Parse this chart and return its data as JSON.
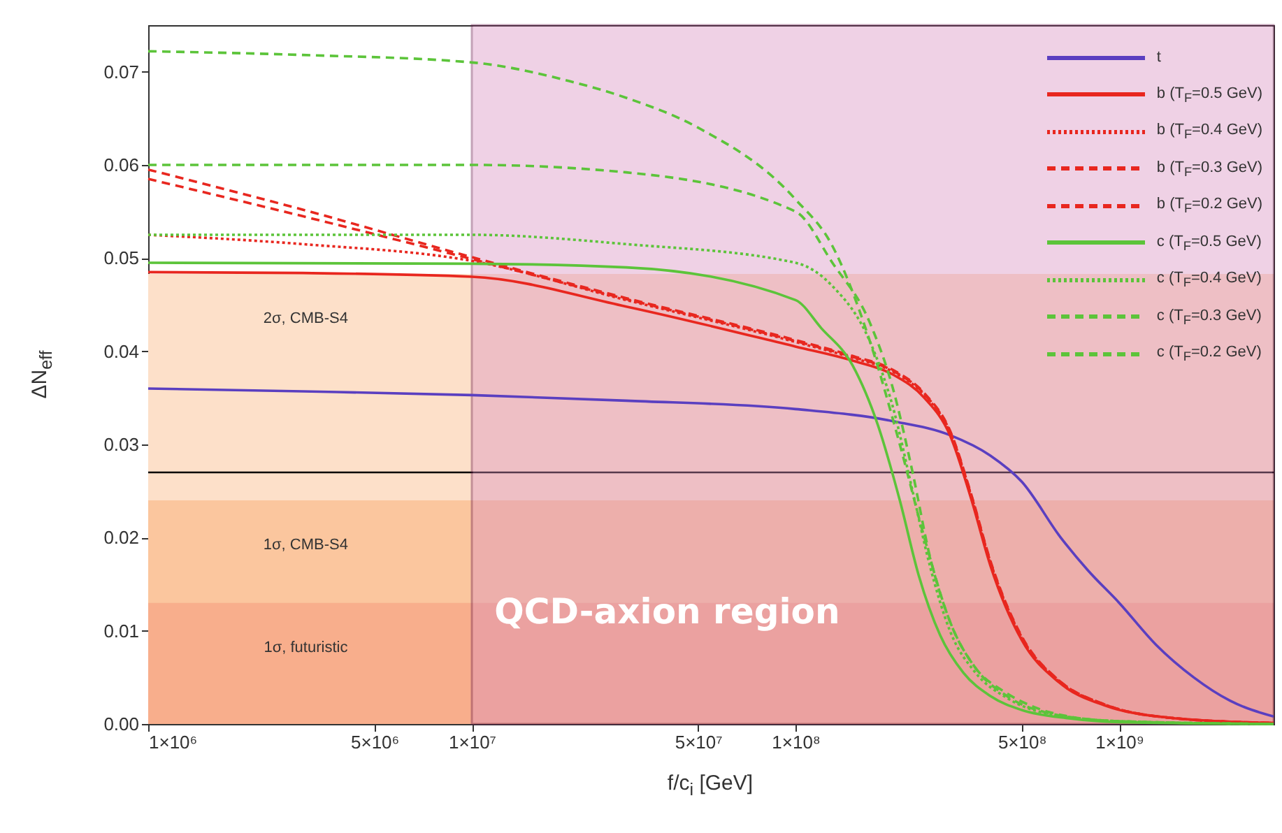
{
  "chart_data": {
    "type": "line",
    "xlabel": "f/c$_{i}$  [GeV]",
    "ylabel": "ΔN$_{eff}$",
    "log": "x",
    "grid": false,
    "legend": "top right",
    "xlim": [
      1000000,
      3000000000
    ],
    "ylim": [
      0,
      0.075
    ],
    "xticks": [
      {
        "value": 1000000,
        "label": "1×10⁶"
      },
      {
        "value": 5000000,
        "label": "5×10⁶"
      },
      {
        "value": 10000000,
        "label": "1×10⁷"
      },
      {
        "value": 50000000,
        "label": "5×10⁷"
      },
      {
        "value": 100000000,
        "label": "1×10⁸"
      },
      {
        "value": 500000000,
        "label": "5×10⁸"
      },
      {
        "value": 1000000000,
        "label": "1×10⁹"
      }
    ],
    "yticks": [
      {
        "value": 0,
        "label": "0.00"
      },
      0.01,
      0.02,
      0.03,
      0.04,
      0.05,
      0.06,
      0.07
    ],
    "bands": [
      {
        "axis": "y",
        "from": 0,
        "to": 0.0483,
        "label": "2σ, CMB-S4",
        "color": "#fde0c9"
      },
      {
        "axis": "y",
        "from": 0,
        "to": 0.024,
        "label": "1σ, CMB-S4",
        "color": "#fbc69e"
      },
      {
        "axis": "y",
        "from": 0,
        "to": 0.013,
        "label": "1σ, futuristic",
        "color": "#f8ae8c"
      },
      {
        "axis": "x",
        "from": 10000000,
        "to": 3000000000,
        "label": "QCD-axion region",
        "color": "#d98fc0"
      }
    ],
    "ref_lines": [
      {
        "axis": "y",
        "value": 0.027,
        "color": "#000000"
      }
    ],
    "series": [
      {
        "name": "t",
        "color": "#5a3fc0",
        "line_style": "solid",
        "x": [
          1000000,
          3000000,
          10000000,
          30000000,
          100000000,
          200000000,
          300000000,
          400000000,
          500000000,
          660000000,
          800000000,
          1000000000,
          1300000000,
          1700000000,
          2200000000,
          3000000000
        ],
        "values": [
          0.036,
          0.0357,
          0.0353,
          0.0347,
          0.0338,
          0.0325,
          0.031,
          0.0288,
          0.026,
          0.02,
          0.0165,
          0.013,
          0.0085,
          0.005,
          0.0025,
          0.0008
        ]
      },
      {
        "name": "b (T$_{F}$=0.5 GeV)",
        "color": "#e8271f",
        "line_style": "solid",
        "x": [
          1000000,
          3000000,
          10000000,
          30000000,
          100000000,
          150000000,
          200000000,
          250000000,
          300000000,
          350000000,
          400000000,
          500000000,
          650000000,
          900000000,
          1500000000,
          3000000000
        ],
        "values": [
          0.0485,
          0.0484,
          0.048,
          0.0448,
          0.0405,
          0.039,
          0.0375,
          0.035,
          0.031,
          0.024,
          0.017,
          0.009,
          0.0045,
          0.002,
          0.0006,
          0.0001
        ]
      },
      {
        "name": "b (T$_{F}$=0.4 GeV)",
        "color": "#e8271f",
        "line_style": "dotted",
        "x": [
          1000000,
          3000000,
          10000000,
          30000000,
          100000000,
          150000000,
          200000000,
          250000000,
          300000000,
          350000000,
          400000000,
          500000000,
          650000000,
          900000000,
          1500000000,
          3000000000
        ],
        "values": [
          0.0525,
          0.0515,
          0.0497,
          0.0455,
          0.041,
          0.0393,
          0.0378,
          0.0353,
          0.0313,
          0.0243,
          0.0173,
          0.0092,
          0.0046,
          0.0021,
          0.0006,
          0.0001
        ]
      },
      {
        "name": "b (T$_{F}$=0.3 GeV)",
        "color": "#e8271f",
        "line_style": "dashed",
        "x": [
          1000000,
          3000000,
          10000000,
          30000000,
          100000000,
          150000000,
          200000000,
          250000000,
          300000000,
          350000000,
          400000000,
          500000000,
          650000000,
          900000000,
          1500000000,
          3000000000
        ],
        "values": [
          0.0585,
          0.0545,
          0.0499,
          0.0456,
          0.0411,
          0.0394,
          0.0379,
          0.0354,
          0.0314,
          0.0244,
          0.0174,
          0.0093,
          0.0047,
          0.0021,
          0.0006,
          0.0001
        ]
      },
      {
        "name": "b (T$_{F}$=0.2 GeV)",
        "color": "#e8271f",
        "line_style": "dashed",
        "x": [
          1000000,
          3000000,
          10000000,
          30000000,
          100000000,
          150000000,
          200000000,
          250000000,
          300000000,
          350000000,
          400000000,
          500000000,
          650000000,
          900000000,
          1500000000,
          3000000000
        ],
        "values": [
          0.0595,
          0.0552,
          0.0501,
          0.0457,
          0.0412,
          0.0395,
          0.038,
          0.0355,
          0.0315,
          0.0245,
          0.0175,
          0.0094,
          0.0047,
          0.0021,
          0.0006,
          0.0001
        ]
      },
      {
        "name": "c (T$_{F}$=0.5 GeV)",
        "color": "#5cc43a",
        "line_style": "solid",
        "x": [
          1000000,
          10000000,
          30000000,
          100000000,
          120000000,
          150000000,
          180000000,
          210000000,
          240000000,
          280000000,
          330000000,
          400000000,
          500000000,
          700000000,
          1000000000,
          3000000000
        ],
        "values": [
          0.0495,
          0.0494,
          0.049,
          0.0455,
          0.0425,
          0.0385,
          0.032,
          0.024,
          0.016,
          0.0095,
          0.0055,
          0.003,
          0.0015,
          0.0006,
          0.0002,
          0
        ]
      },
      {
        "name": "c (T$_{F}$=0.4 GeV)",
        "color": "#5cc43a",
        "line_style": "dotted",
        "x": [
          1000000,
          10000000,
          30000000,
          100000000,
          130000000,
          170000000,
          200000000,
          230000000,
          260000000,
          300000000,
          360000000,
          450000000,
          600000000,
          1000000000,
          3000000000
        ],
        "values": [
          0.0525,
          0.0525,
          0.0515,
          0.0495,
          0.047,
          0.041,
          0.034,
          0.025,
          0.017,
          0.01,
          0.0055,
          0.0028,
          0.0011,
          0.0003,
          0
        ]
      },
      {
        "name": "c (T$_{F}$=0.3 GeV)",
        "color": "#5cc43a",
        "line_style": "dashed",
        "x": [
          1000000,
          10000000,
          30000000,
          100000000,
          130000000,
          170000000,
          200000000,
          230000000,
          260000000,
          300000000,
          360000000,
          450000000,
          600000000,
          1000000000,
          3000000000
        ],
        "values": [
          0.06,
          0.06,
          0.0592,
          0.055,
          0.0495,
          0.043,
          0.036,
          0.027,
          0.018,
          0.011,
          0.006,
          0.003,
          0.0012,
          0.0003,
          0
        ]
      },
      {
        "name": "c (T$_{F}$=0.2 GeV)",
        "color": "#5cc43a",
        "line_style": "dashed",
        "x": [
          1000000,
          3000000,
          10000000,
          20000000,
          30000000,
          50000000,
          100000000,
          130000000,
          170000000,
          210000000,
          250000000,
          300000000,
          360000000,
          440000000,
          530000000,
          700000000,
          1000000000,
          3000000000
        ],
        "values": [
          0.0722,
          0.0718,
          0.071,
          0.069,
          0.0672,
          0.064,
          0.0563,
          0.0513,
          0.041,
          0.03,
          0.02,
          0.011,
          0.006,
          0.0035,
          0.002,
          0.0008,
          0.0003,
          0
        ]
      }
    ]
  }
}
